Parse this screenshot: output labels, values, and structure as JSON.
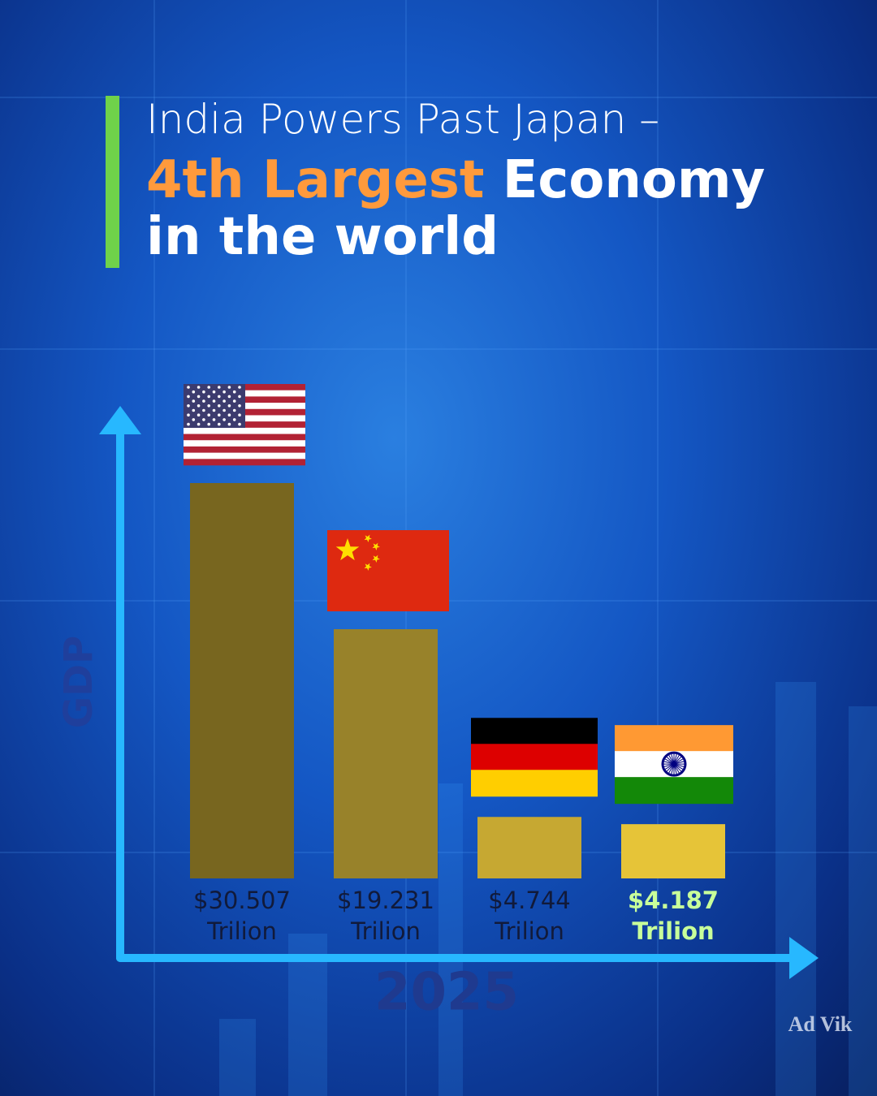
{
  "chart_data": {
    "type": "bar",
    "title": [
      "India Powers Past Japan –",
      "4th Largest",
      "Economy",
      "in the world"
    ],
    "y_label": "GDP",
    "x_label": "2025",
    "categories": [
      null,
      null,
      null,
      null
    ],
    "values": [
      30.507,
      19.231,
      4.744,
      4.187
    ],
    "value_labels": [
      "$30.507 Trilion",
      "$19.231 Trilion",
      "$4.744 Trilion",
      "$4.187 Trilion"
    ],
    "colors": [
      "#78661f",
      "#98822a",
      "#c6a832",
      "#e6c438"
    ],
    "value_label_colors": [
      "#111a3a",
      "#111a3a",
      "#111a3a",
      "#c8ff9a"
    ],
    "logo": "Ad Vik"
  }
}
